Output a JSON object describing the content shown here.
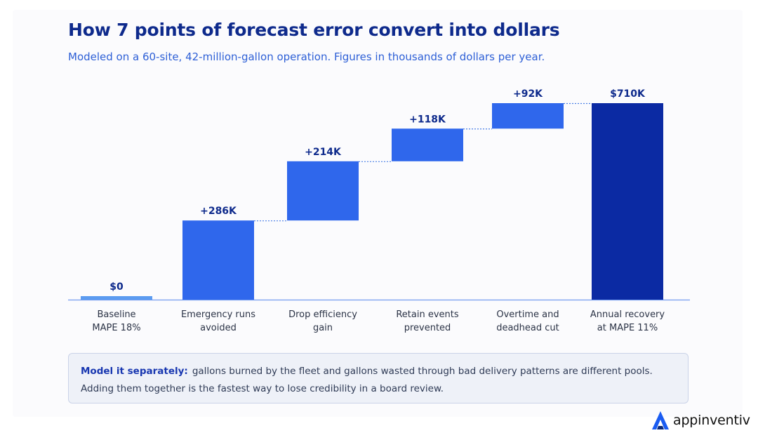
{
  "header": {
    "title": "How 7 points of forecast error convert into dollars",
    "subtitle": "Modeled on a 60-site, 42-million-gallon operation. Figures in thousands of dollars per year."
  },
  "chart_data": {
    "type": "bar",
    "variant": "waterfall",
    "categories": [
      [
        "Baseline",
        "MAPE 18%"
      ],
      [
        "Emergency runs",
        "avoided"
      ],
      [
        "Drop efficiency",
        "gain"
      ],
      [
        "Retain events",
        "prevented"
      ],
      [
        "Overtime and",
        "deadhead cut"
      ],
      [
        "Annual recovery",
        "at MAPE 11%"
      ]
    ],
    "values": [
      0,
      286,
      214,
      118,
      92,
      710
    ],
    "kinds": [
      "total",
      "delta",
      "delta",
      "delta",
      "delta",
      "total"
    ],
    "data_labels": [
      "$0",
      "+286K",
      "+214K",
      "+118K",
      "+92K",
      "$710K"
    ],
    "ylim": [
      0,
      710
    ],
    "grid": false,
    "colors": {
      "baseline": "#5b9bf0",
      "increment": "#2f67ec",
      "total": "#0b2aa3",
      "connector": "#4a7fe6",
      "axis": "#6f9af0"
    }
  },
  "callout": {
    "lead": "Model it separately:",
    "line1": "gallons burned by the fleet and gallons wasted through bad delivery patterns are different pools.",
    "line2": "Adding them together is the fastest way to lose credibility in a board review."
  },
  "brand": {
    "name": "appinventiv",
    "logo_icon": "triangle-a-logo-icon",
    "color": "#1a5cf2"
  }
}
